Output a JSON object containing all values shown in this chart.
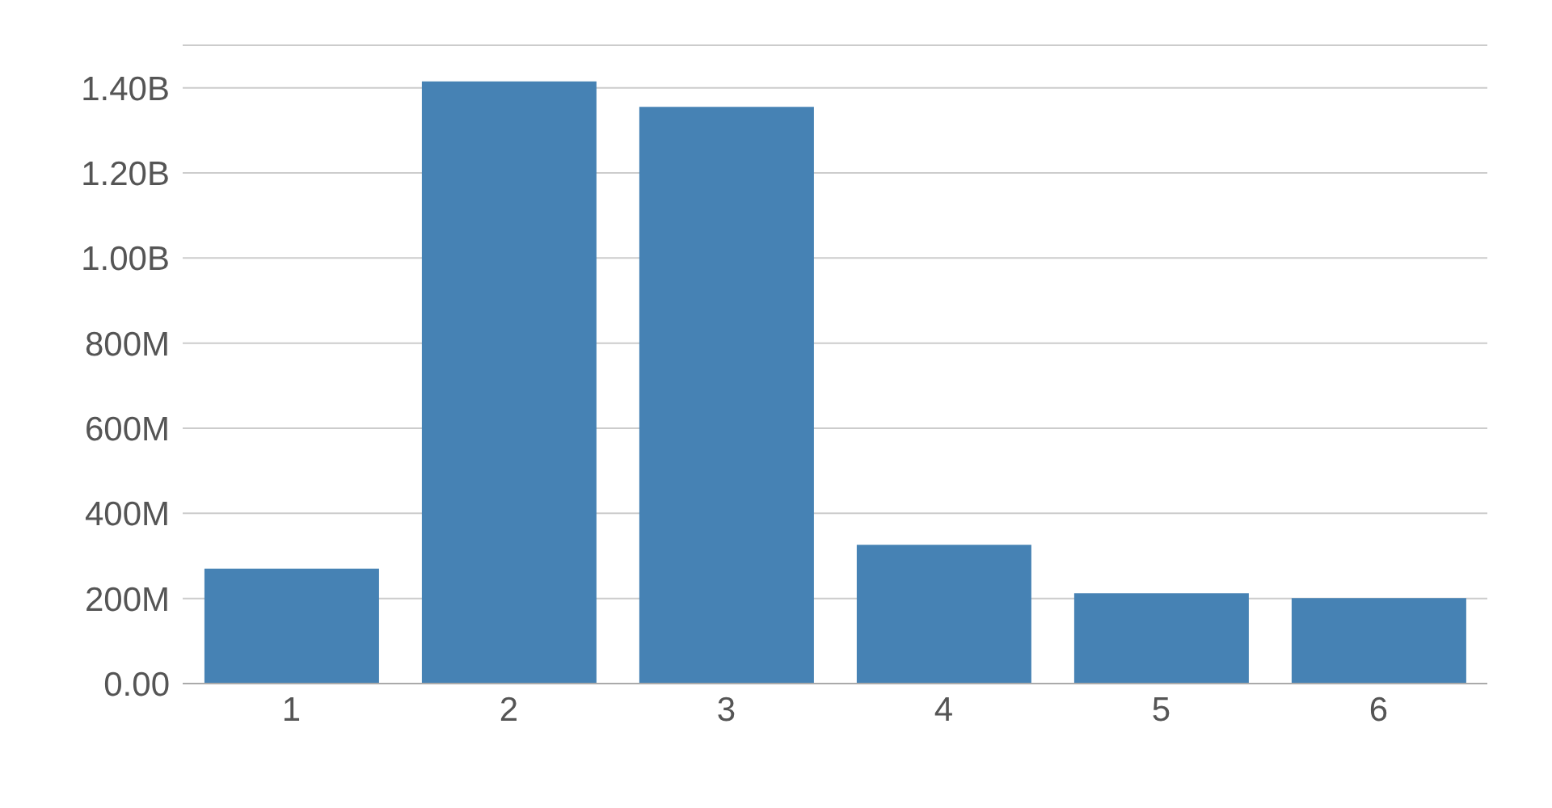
{
  "chart_data": {
    "type": "bar",
    "categories": [
      "1",
      "2",
      "3",
      "4",
      "5",
      "6"
    ],
    "values": [
      270000000,
      1415000000,
      1355000000,
      326000000,
      212000000,
      201000000
    ],
    "color": "#4682b4",
    "ylim": [
      0,
      1500000000
    ],
    "yticks": [
      {
        "value": 0,
        "label": "0.00"
      },
      {
        "value": 200000000,
        "label": "200M"
      },
      {
        "value": 400000000,
        "label": "400M"
      },
      {
        "value": 600000000,
        "label": "600M"
      },
      {
        "value": 800000000,
        "label": "800M"
      },
      {
        "value": 1000000000,
        "label": "1.00B"
      },
      {
        "value": 1200000000,
        "label": "1.20B"
      },
      {
        "value": 1400000000,
        "label": "1.40B"
      }
    ],
    "grid": "y"
  }
}
